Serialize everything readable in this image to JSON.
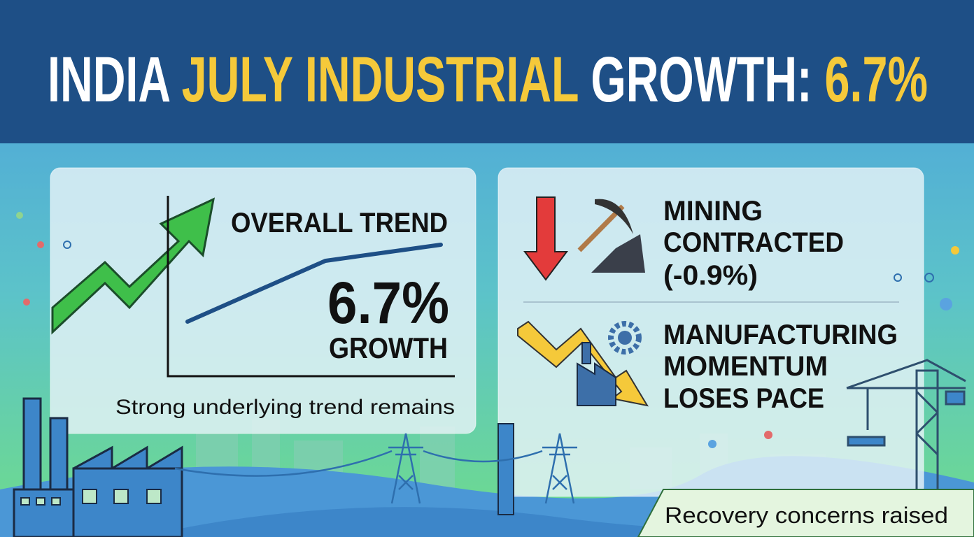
{
  "header": {
    "title": [
      {
        "text": "INDIA ",
        "color": "#ffffff"
      },
      {
        "text": "JULY INDUSTRIAL",
        "color": "#f5c93a"
      },
      {
        "text": " GROWTH: ",
        "color": "#ffffff"
      },
      {
        "text": "6.7%",
        "color": "#f5c93a"
      }
    ]
  },
  "left_panel": {
    "heading": "OVERALL TREND",
    "figure": "6.7%",
    "figure_label": "GROWTH",
    "caption": "Strong underlying trend remains"
  },
  "right_panel": {
    "mining": [
      "MINING",
      "CONTRACTED",
      "(-0.9%)"
    ],
    "manufacturing": [
      "MANUFACTURING",
      "MOMENTUM",
      "LOSES PACE"
    ],
    "footer": "Recovery concerns raised"
  }
}
